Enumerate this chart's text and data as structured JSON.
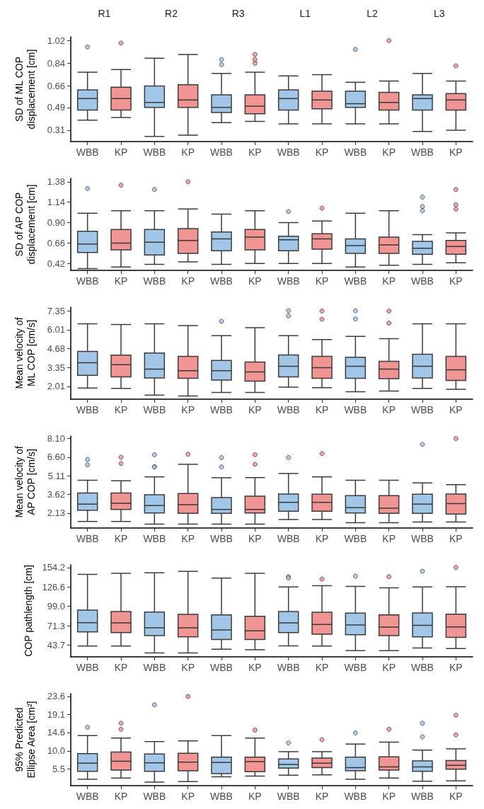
{
  "chart_data": [
    {
      "type": "box",
      "legend": "bottom",
      "categories": [
        "R1",
        "R2",
        "R3",
        "L1",
        "L2",
        "L3"
      ],
      "ylabel": "SD of ML COP displacement [cm]",
      "ylim": [
        0.22,
        1.05
      ],
      "yticks": [
        0.31,
        0.49,
        0.66,
        0.84,
        1.02
      ],
      "series": [
        {
          "name": "WBB",
          "color": "#9dc3e6",
          "boxes": [
            {
              "low": 0.39,
              "q1": 0.47,
              "median": 0.56,
              "q3": 0.63,
              "high": 0.77,
              "outliers": [
                0.97
              ]
            },
            {
              "low": 0.26,
              "q1": 0.49,
              "median": 0.53,
              "q3": 0.66,
              "high": 0.88
            },
            {
              "low": 0.37,
              "q1": 0.45,
              "median": 0.49,
              "q3": 0.59,
              "high": 0.76,
              "outliers": [
                0.87,
                0.83
              ]
            },
            {
              "low": 0.36,
              "q1": 0.47,
              "median": 0.56,
              "q3": 0.63,
              "high": 0.74
            },
            {
              "low": 0.36,
              "q1": 0.49,
              "median": 0.52,
              "q3": 0.62,
              "high": 0.69,
              "outliers": [
                0.95
              ]
            },
            {
              "low": 0.3,
              "q1": 0.47,
              "median": 0.56,
              "q3": 0.59,
              "high": 0.76
            }
          ]
        },
        {
          "name": "KP",
          "color": "#f08e8e",
          "boxes": [
            {
              "low": 0.41,
              "q1": 0.47,
              "median": 0.56,
              "q3": 0.65,
              "high": 0.79,
              "outliers": [
                1.0
              ]
            },
            {
              "low": 0.27,
              "q1": 0.49,
              "median": 0.55,
              "q3": 0.67,
              "high": 0.91
            },
            {
              "low": 0.38,
              "q1": 0.44,
              "median": 0.5,
              "q3": 0.59,
              "high": 0.77,
              "outliers": [
                0.91,
                0.87,
                0.84
              ]
            },
            {
              "low": 0.36,
              "q1": 0.48,
              "median": 0.55,
              "q3": 0.62,
              "high": 0.75
            },
            {
              "low": 0.36,
              "q1": 0.47,
              "median": 0.53,
              "q3": 0.61,
              "high": 0.7,
              "outliers": [
                1.02
              ]
            },
            {
              "low": 0.31,
              "q1": 0.47,
              "median": 0.55,
              "q3": 0.6,
              "high": 0.7,
              "outliers": [
                0.82
              ]
            }
          ]
        }
      ]
    },
    {
      "type": "box",
      "legend": "bottom",
      "ylabel": "SD of AP COP displacement [cm]",
      "ylim": [
        0.34,
        1.42
      ],
      "yticks": [
        0.42,
        0.66,
        {
          "value": 0.9,
          "label": "0.90"
        },
        1.14,
        1.38
      ],
      "series": [
        {
          "name": "WBB",
          "color": "#9dc3e6",
          "boxes": [
            {
              "low": 0.36,
              "q1": 0.55,
              "median": 0.65,
              "q3": 0.8,
              "high": 1.01,
              "outliers": [
                1.3
              ]
            },
            {
              "low": 0.41,
              "q1": 0.52,
              "median": 0.67,
              "q3": 0.82,
              "high": 1.04,
              "outliers": [
                1.29
              ]
            },
            {
              "low": 0.41,
              "q1": 0.57,
              "median": 0.71,
              "q3": 0.79,
              "high": 1.0
            },
            {
              "low": 0.42,
              "q1": 0.57,
              "median": 0.7,
              "q3": 0.74,
              "high": 0.9,
              "outliers": [
                1.03
              ]
            },
            {
              "low": 0.38,
              "q1": 0.54,
              "median": 0.63,
              "q3": 0.71,
              "high": 1.01
            },
            {
              "low": 0.41,
              "q1": 0.53,
              "median": 0.6,
              "q3": 0.68,
              "high": 0.76,
              "outliers": [
                1.2,
                1.09,
                1.04
              ]
            }
          ]
        },
        {
          "name": "KP",
          "color": "#f08e8e",
          "boxes": [
            {
              "low": 0.38,
              "q1": 0.58,
              "median": 0.66,
              "q3": 0.82,
              "high": 1.04,
              "outliers": [
                1.34
              ]
            },
            {
              "low": 0.44,
              "q1": 0.54,
              "median": 0.69,
              "q3": 0.83,
              "high": 1.06,
              "outliers": [
                1.38
              ]
            },
            {
              "low": 0.42,
              "q1": 0.58,
              "median": 0.73,
              "q3": 0.82,
              "high": 1.04
            },
            {
              "low": 0.42,
              "q1": 0.59,
              "median": 0.71,
              "q3": 0.77,
              "high": 0.92,
              "outliers": [
                1.07
              ]
            },
            {
              "low": 0.4,
              "q1": 0.54,
              "median": 0.64,
              "q3": 0.73,
              "high": 1.04
            },
            {
              "low": 0.43,
              "q1": 0.53,
              "median": 0.62,
              "q3": 0.69,
              "high": 0.78,
              "outliers": [
                1.29,
                1.11,
                1.06
              ]
            }
          ]
        }
      ]
    },
    {
      "type": "box",
      "legend": "bottom",
      "ylabel": "Mean velocity of ML COP [cm/s]",
      "ylim": [
        1.1,
        7.6
      ],
      "yticks": [
        2.01,
        3.35,
        4.68,
        6.01,
        7.35
      ],
      "series": [
        {
          "name": "WBB",
          "color": "#9dc3e6",
          "boxes": [
            {
              "low": 1.89,
              "q1": 2.79,
              "median": 3.67,
              "q3": 4.47,
              "high": 6.43
            },
            {
              "low": 1.39,
              "q1": 2.6,
              "median": 3.22,
              "q3": 4.36,
              "high": 6.43
            },
            {
              "low": 1.57,
              "q1": 2.45,
              "median": 3.11,
              "q3": 3.84,
              "high": 5.59,
              "outliers": [
                6.6
              ]
            },
            {
              "low": 1.95,
              "q1": 2.68,
              "median": 3.43,
              "q3": 4.23,
              "high": 5.59,
              "outliers": [
                7.35,
                6.98
              ]
            },
            {
              "low": 1.63,
              "q1": 2.58,
              "median": 3.43,
              "q3": 4.06,
              "high": 5.54,
              "outliers": [
                7.35,
                6.77
              ]
            },
            {
              "low": 1.86,
              "q1": 2.6,
              "median": 3.43,
              "q3": 4.27,
              "high": 6.43
            }
          ]
        },
        {
          "name": "KP",
          "color": "#f08e8e",
          "boxes": [
            {
              "low": 1.86,
              "q1": 2.68,
              "median": 3.54,
              "q3": 4.21,
              "high": 6.38
            },
            {
              "low": 1.33,
              "q1": 2.57,
              "median": 3.11,
              "q3": 4.13,
              "high": 6.3
            },
            {
              "low": 1.57,
              "q1": 2.38,
              "median": 3.03,
              "q3": 3.72,
              "high": 6.15
            },
            {
              "low": 1.91,
              "q1": 2.57,
              "median": 3.33,
              "q3": 4.13,
              "high": 5.31,
              "outliers": [
                7.33,
                6.75
              ]
            },
            {
              "low": 1.67,
              "q1": 2.55,
              "median": 3.22,
              "q3": 3.78,
              "high": 5.37,
              "outliers": [
                7.33,
                6.47
              ]
            },
            {
              "low": 1.8,
              "q1": 2.43,
              "median": 3.18,
              "q3": 4.12,
              "high": 6.42
            }
          ]
        }
      ]
    },
    {
      "type": "box",
      "legend": "bottom",
      "ylabel": "Mean velocity of AP COP [cm/s]",
      "ylim": [
        0.93,
        8.3
      ],
      "yticks": [
        2.13,
        3.62,
        5.11,
        {
          "value": 6.6,
          "label": "6.60"
        },
        {
          "value": 8.1,
          "label": "8.10"
        }
      ],
      "series": [
        {
          "name": "WBB",
          "color": "#9dc3e6",
          "boxes": [
            {
              "low": 1.46,
              "q1": 2.35,
              "median": 2.84,
              "q3": 3.74,
              "high": 4.76,
              "outliers": [
                6.42,
                5.99
              ]
            },
            {
              "low": 1.24,
              "q1": 2.14,
              "median": 2.73,
              "q3": 3.59,
              "high": 5.03,
              "outliers": [
                6.8,
                5.84,
                5.82
              ]
            },
            {
              "low": 1.24,
              "q1": 2.1,
              "median": 2.42,
              "q3": 3.37,
              "high": 4.95,
              "outliers": [
                6.57,
                5.82
              ]
            },
            {
              "low": 1.61,
              "q1": 2.27,
              "median": 2.99,
              "q3": 3.65,
              "high": 5.29,
              "outliers": [
                6.57
              ]
            },
            {
              "low": 1.35,
              "q1": 2.14,
              "median": 2.56,
              "q3": 3.52,
              "high": 4.76
            },
            {
              "low": 1.41,
              "q1": 2.1,
              "median": 2.84,
              "q3": 3.63,
              "high": 4.54,
              "outliers": [
                7.63
              ]
            }
          ]
        },
        {
          "name": "KP",
          "color": "#f08e8e",
          "boxes": [
            {
              "low": 1.46,
              "q1": 2.42,
              "median": 2.91,
              "q3": 3.74,
              "high": 4.71,
              "outliers": [
                6.6,
                6.1
              ]
            },
            {
              "low": 1.24,
              "q1": 2.1,
              "median": 2.8,
              "q3": 3.69,
              "high": 6.03,
              "outliers": [
                6.84
              ]
            },
            {
              "low": 1.24,
              "q1": 2.14,
              "median": 2.42,
              "q3": 3.48,
              "high": 4.97,
              "outliers": [
                6.8,
                6.03
              ]
            },
            {
              "low": 1.61,
              "q1": 2.27,
              "median": 2.99,
              "q3": 3.63,
              "high": 5.03,
              "outliers": [
                6.89
              ]
            },
            {
              "low": 1.35,
              "q1": 2.1,
              "median": 2.52,
              "q3": 3.52,
              "high": 4.76
            },
            {
              "low": 1.41,
              "q1": 2.05,
              "median": 2.88,
              "q3": 3.65,
              "high": 4.4,
              "outliers": [
                8.1
              ]
            }
          ]
        }
      ]
    },
    {
      "type": "box",
      "legend": "bottom",
      "ylabel": "COP pathlength [cm]",
      "ylim": [
        27,
        158
      ],
      "yticks": [
        43.7,
        71.3,
        {
          "value": 99,
          "label": "99.0"
        },
        126.6,
        154.2
      ],
      "series": [
        {
          "name": "WBB",
          "color": "#9dc3e6",
          "boxes": [
            {
              "low": 42.3,
              "q1": 62.6,
              "median": 75.7,
              "q3": 93.4,
              "high": 144.4
            },
            {
              "low": 32.5,
              "q1": 57.3,
              "median": 68.2,
              "q3": 90.7,
              "high": 146.7
            },
            {
              "low": 37.8,
              "q1": 51.7,
              "median": 65.2,
              "q3": 86.6,
              "high": 139.2
            },
            {
              "low": 42.7,
              "q1": 61.5,
              "median": 75.3,
              "q3": 91.5,
              "high": 126.4,
              "outliers": [
                141.1,
                139.2
              ]
            },
            {
              "low": 35.9,
              "q1": 58.4,
              "median": 72.3,
              "q3": 89.2,
              "high": 127.2,
              "outliers": [
                141.8
              ]
            },
            {
              "low": 39.7,
              "q1": 55.4,
              "median": 71.9,
              "q3": 89.6,
              "high": 126.4,
              "outliers": [
                148.9
              ]
            }
          ]
        },
        {
          "name": "KP",
          "color": "#f08e8e",
          "boxes": [
            {
              "low": 42.3,
              "q1": 61.5,
              "median": 75.3,
              "q3": 91.5,
              "high": 145.9
            },
            {
              "low": 32.5,
              "q1": 55.4,
              "median": 68.2,
              "q3": 87.4,
              "high": 148.6
            },
            {
              "low": 37.0,
              "q1": 51.7,
              "median": 64.1,
              "q3": 84.7,
              "high": 145.9
            },
            {
              "low": 42.3,
              "q1": 59.2,
              "median": 73.1,
              "q3": 90.4,
              "high": 128.3,
              "outliers": [
                137.7
              ]
            },
            {
              "low": 35.9,
              "q1": 57.3,
              "median": 69.3,
              "q3": 86.6,
              "high": 125.3,
              "outliers": [
                141.1
              ]
            },
            {
              "low": 38.9,
              "q1": 54.7,
              "median": 69.7,
              "q3": 87.7,
              "high": 126.8,
              "outliers": [
                154.2
              ]
            }
          ]
        }
      ]
    },
    {
      "type": "box",
      "legend": "bottom",
      "ylabel": "95% Predicted Ellipse Area [cm²]",
      "ylim": [
        1.3,
        24.3
      ],
      "yticks": [
        5.5,
        {
          "value": 10,
          "label": "10.0"
        },
        14.6,
        19.1,
        23.6
      ],
      "series": [
        {
          "name": "WBB",
          "color": "#9dc3e6",
          "boxes": [
            {
              "low": 2.9,
              "q1": 4.9,
              "median": 6.9,
              "q3": 9.3,
              "high": 13.8,
              "outliers": [
                15.9
              ]
            },
            {
              "low": 2.2,
              "q1": 4.9,
              "median": 7.0,
              "q3": 9.2,
              "high": 12.3,
              "outliers": [
                21.5
              ]
            },
            {
              "low": 3.5,
              "q1": 4.3,
              "median": 7.1,
              "q3": 8.4,
              "high": 13.8
            },
            {
              "low": 3.9,
              "q1": 5.7,
              "median": 6.6,
              "q3": 8.0,
              "high": 9.8,
              "outliers": [
                12.0
              ]
            },
            {
              "low": 2.9,
              "q1": 5.0,
              "median": 5.8,
              "q3": 8.4,
              "high": 11.7,
              "outliers": [
                14.5
              ]
            },
            {
              "low": 2.4,
              "q1": 4.9,
              "median": 6.0,
              "q3": 7.5,
              "high": 10.2,
              "outliers": [
                16.9,
                13.5
              ]
            }
          ]
        },
        {
          "name": "KP",
          "color": "#f08e8e",
          "boxes": [
            {
              "low": 3.2,
              "q1": 5.2,
              "median": 7.4,
              "q3": 9.7,
              "high": 13.2,
              "outliers": [
                16.9,
                15.4
              ]
            },
            {
              "low": 2.3,
              "q1": 5.0,
              "median": 7.2,
              "q3": 9.4,
              "high": 12.5,
              "outliers": [
                23.6
              ]
            },
            {
              "low": 3.7,
              "q1": 4.8,
              "median": 7.3,
              "q3": 8.4,
              "high": 13.2,
              "outliers": [
                15.2
              ]
            },
            {
              "low": 4.0,
              "q1": 5.8,
              "median": 6.9,
              "q3": 8.2,
              "high": 9.8,
              "outliers": [
                12.8
              ]
            },
            {
              "low": 3.2,
              "q1": 5.2,
              "median": 6.0,
              "q3": 8.5,
              "high": 12.2,
              "outliers": [
                15.4
              ]
            },
            {
              "low": 2.5,
              "q1": 5.4,
              "median": 6.4,
              "q3": 7.6,
              "high": 10.5,
              "outliers": [
                18.9,
                14.0
              ]
            }
          ]
        }
      ]
    }
  ]
}
